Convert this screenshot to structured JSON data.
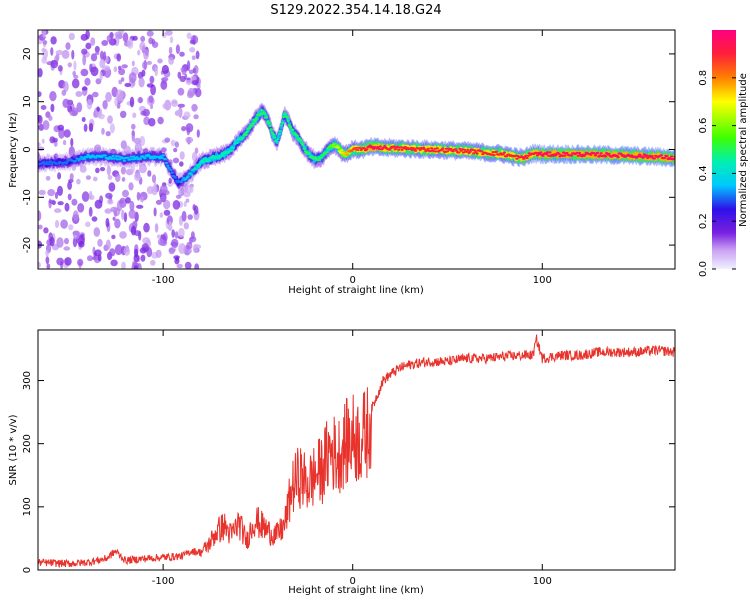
{
  "figure": {
    "title": "S129.2022.354.14.18.G24"
  },
  "colors": {
    "snr_line": "#e8322c",
    "colormap": [
      "#f0f0ff",
      "#c9a0f2",
      "#7a22e0",
      "#2e10e8",
      "#00c8ff",
      "#00f0b0",
      "#40ff00",
      "#ffff00",
      "#ff8000",
      "#ff1f3a",
      "#ff007f"
    ]
  },
  "chart_data": [
    {
      "type": "heatmap",
      "title": "S129.2022.354.14.18.G24",
      "xlabel": "Height of straight line (km)",
      "ylabel": "Frequency (Hz)",
      "xlim": [
        -166,
        170
      ],
      "ylim": [
        -25,
        25
      ],
      "x_ticks": [
        -100,
        0,
        100
      ],
      "y_ticks": [
        -20,
        -10,
        0,
        10,
        20
      ],
      "colorbar": {
        "label": "Normalized spectral amplitude",
        "range": [
          0,
          1
        ],
        "ticks": [
          0.0,
          0.2,
          0.4,
          0.6,
          0.8
        ]
      },
      "ridge": {
        "description": "dominant frequency ridge",
        "x": [
          -166,
          -150,
          -140,
          -130,
          -120,
          -110,
          -100,
          -92,
          -88,
          -84,
          -80,
          -76,
          -72,
          -68,
          -64,
          -60,
          -56,
          -52,
          -48,
          -46,
          -44,
          -42,
          -40,
          -38,
          -36,
          -34,
          -32,
          -30,
          -28,
          -26,
          -24,
          -22,
          -20,
          -18,
          -16,
          -14,
          -12,
          -10,
          -8,
          -6,
          -4,
          -2,
          0,
          5,
          10,
          20,
          40,
          60,
          80,
          85,
          90,
          95,
          100,
          120,
          140,
          160,
          170
        ],
        "y": [
          -3,
          -2.5,
          -1.5,
          -1.5,
          -2,
          -1.5,
          -1.5,
          -7,
          -6,
          -4.5,
          -2.5,
          -2,
          -1.5,
          -1,
          0,
          2,
          3.5,
          6,
          8,
          7,
          5.5,
          3,
          1.5,
          4,
          7.5,
          6,
          4,
          3,
          2,
          0.5,
          -0.5,
          -1.5,
          -2,
          -2,
          -1.5,
          -0.5,
          0.5,
          1,
          0.5,
          -0.5,
          -1,
          -0.5,
          0,
          0,
          0.5,
          0.3,
          0,
          -0.3,
          -1,
          -1.5,
          -1.8,
          -0.8,
          -1,
          -1,
          -1.2,
          -1.5,
          -1.8
        ],
        "amplitude": [
          0.3,
          0.3,
          0.35,
          0.35,
          0.35,
          0.35,
          0.35,
          0.3,
          0.35,
          0.4,
          0.45,
          0.45,
          0.45,
          0.45,
          0.45,
          0.45,
          0.5,
          0.5,
          0.5,
          0.5,
          0.5,
          0.5,
          0.45,
          0.45,
          0.5,
          0.5,
          0.5,
          0.5,
          0.5,
          0.5,
          0.5,
          0.5,
          0.5,
          0.5,
          0.5,
          0.5,
          0.55,
          0.6,
          0.65,
          0.7,
          0.75,
          0.8,
          0.85,
          0.9,
          0.95,
          0.9,
          0.9,
          0.9,
          0.9,
          0.9,
          0.92,
          0.92,
          0.95,
          0.95,
          0.95,
          0.95,
          0.95
        ]
      }
    },
    {
      "type": "line",
      "xlabel": "Height of straight line (km)",
      "ylabel": "SNR (10 * v/v)",
      "xlim": [
        -166,
        170
      ],
      "ylim": [
        0,
        380
      ],
      "x_ticks": [
        -100,
        0,
        100
      ],
      "y_ticks": [
        0,
        100,
        200,
        300
      ],
      "series": [
        {
          "x": [
            -166,
            -150,
            -140,
            -130,
            -125,
            -120,
            -110,
            -100,
            -90,
            -85,
            -80,
            -76,
            -72,
            -68,
            -64,
            -60,
            -56,
            -52,
            -48,
            -44,
            -40,
            -36,
            -32,
            -28,
            -24,
            -20,
            -16,
            -12,
            -8,
            -4,
            0,
            4,
            8,
            10,
            12,
            16,
            20,
            25,
            30,
            40,
            50,
            60,
            70,
            80,
            90,
            95,
            97,
            100,
            110,
            120,
            130,
            140,
            150,
            160,
            170
          ],
          "values": [
            12,
            10,
            12,
            18,
            30,
            15,
            18,
            20,
            22,
            30,
            28,
            40,
            60,
            70,
            55,
            75,
            45,
            80,
            70,
            60,
            55,
            70,
            130,
            150,
            135,
            150,
            160,
            190,
            180,
            200,
            210,
            205,
            220,
            255,
            270,
            300,
            310,
            320,
            325,
            330,
            330,
            335,
            335,
            338,
            340,
            340,
            365,
            335,
            340,
            340,
            345,
            345,
            345,
            348,
            345
          ],
          "color": "#e8322c"
        }
      ]
    }
  ]
}
